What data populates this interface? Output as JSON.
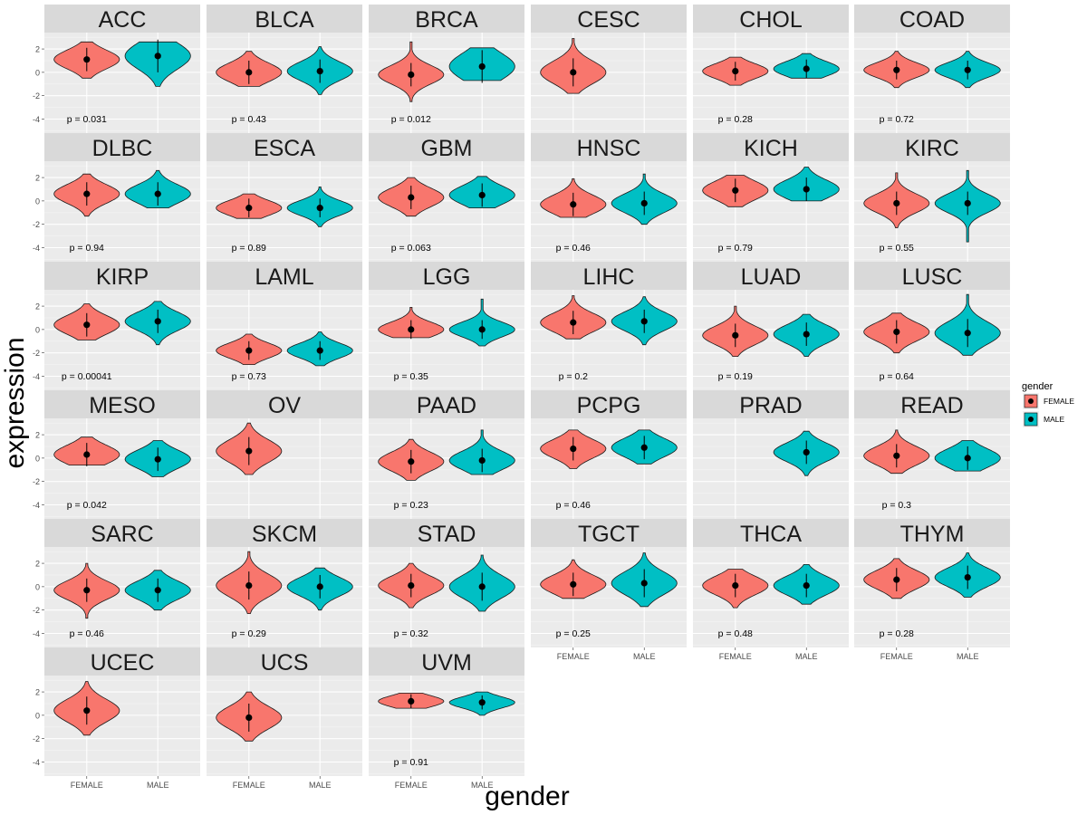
{
  "chart_data": {
    "type": "violin",
    "xlabel": "gender",
    "ylabel": "expression",
    "ylim": [
      -5.2,
      3.4
    ],
    "yticks": [
      "2",
      "0",
      "-2",
      "-4"
    ],
    "ytick_values": [
      2,
      0,
      -2,
      -4
    ],
    "categories": [
      "FEMALE",
      "MALE"
    ],
    "legend": {
      "title": "gender",
      "position": "right",
      "entries": [
        {
          "label": "FEMALE",
          "color": "#F8766D"
        },
        {
          "label": "MALE",
          "color": "#00BFC4"
        }
      ]
    },
    "panels": [
      {
        "name": "ACC",
        "p": "p = 0.031",
        "female": {
          "min": -0.5,
          "max": 2.6,
          "mean": 1.1,
          "sd": 0.5
        },
        "male": {
          "min": -1.2,
          "max": 2.6,
          "mean": 1.4,
          "sd": 0.7
        }
      },
      {
        "name": "BLCA",
        "p": "p = 0.43",
        "female": {
          "min": -1.2,
          "max": 1.8,
          "mean": 0.0,
          "sd": 0.5
        },
        "male": {
          "min": -1.9,
          "max": 2.2,
          "mean": 0.1,
          "sd": 0.5
        }
      },
      {
        "name": "BRCA",
        "p": "p = 0.012",
        "female": {
          "min": -2.5,
          "max": 2.6,
          "mean": -0.2,
          "sd": 0.5
        },
        "male": {
          "min": -0.7,
          "max": 2.1,
          "mean": 0.5,
          "sd": 0.7
        }
      },
      {
        "name": "CESC",
        "p": "",
        "female": {
          "min": -1.8,
          "max": 2.9,
          "mean": 0.0,
          "sd": 0.6
        },
        "male": null
      },
      {
        "name": "CHOL",
        "p": "p = 0.28",
        "female": {
          "min": -1.1,
          "max": 1.3,
          "mean": 0.1,
          "sd": 0.4
        },
        "male": {
          "min": -0.5,
          "max": 1.6,
          "mean": 0.3,
          "sd": 0.4
        }
      },
      {
        "name": "COAD",
        "p": "p = 0.72",
        "female": {
          "min": -1.3,
          "max": 1.8,
          "mean": 0.2,
          "sd": 0.4
        },
        "male": {
          "min": -1.3,
          "max": 1.8,
          "mean": 0.2,
          "sd": 0.4
        }
      },
      {
        "name": "DLBC",
        "p": "p = 0.94",
        "female": {
          "min": -1.3,
          "max": 2.3,
          "mean": 0.6,
          "sd": 0.5
        },
        "male": {
          "min": -0.6,
          "max": 2.6,
          "mean": 0.6,
          "sd": 0.5
        }
      },
      {
        "name": "ESCA",
        "p": "p = 0.89",
        "female": {
          "min": -1.5,
          "max": 0.6,
          "mean": -0.6,
          "sd": 0.4
        },
        "male": {
          "min": -2.2,
          "max": 1.2,
          "mean": -0.6,
          "sd": 0.4
        }
      },
      {
        "name": "GBM",
        "p": "p = 0.063",
        "female": {
          "min": -1.3,
          "max": 2.0,
          "mean": 0.3,
          "sd": 0.5
        },
        "male": {
          "min": -0.6,
          "max": 2.1,
          "mean": 0.5,
          "sd": 0.5
        }
      },
      {
        "name": "HNSC",
        "p": "p = 0.46",
        "female": {
          "min": -1.4,
          "max": 1.9,
          "mean": -0.3,
          "sd": 0.5
        },
        "male": {
          "min": -2.0,
          "max": 2.3,
          "mean": -0.2,
          "sd": 0.5
        }
      },
      {
        "name": "KICH",
        "p": "p = 0.79",
        "female": {
          "min": -0.5,
          "max": 2.2,
          "mean": 0.9,
          "sd": 0.5
        },
        "male": {
          "min": 0.0,
          "max": 2.9,
          "mean": 1.0,
          "sd": 0.5
        }
      },
      {
        "name": "KIRC",
        "p": "p = 0.55",
        "female": {
          "min": -2.3,
          "max": 2.4,
          "mean": -0.2,
          "sd": 0.5
        },
        "male": {
          "min": -3.5,
          "max": 2.6,
          "mean": -0.2,
          "sd": 0.5
        }
      },
      {
        "name": "KIRP",
        "p": "p = 0.00041",
        "female": {
          "min": -0.9,
          "max": 2.2,
          "mean": 0.4,
          "sd": 0.5
        },
        "male": {
          "min": -1.3,
          "max": 2.4,
          "mean": 0.7,
          "sd": 0.5
        }
      },
      {
        "name": "LAML",
        "p": "p = 0.73",
        "female": {
          "min": -3.0,
          "max": -0.4,
          "mean": -1.8,
          "sd": 0.4
        },
        "male": {
          "min": -3.1,
          "max": -0.2,
          "mean": -1.8,
          "sd": 0.4
        }
      },
      {
        "name": "LGG",
        "p": "p = 0.35",
        "female": {
          "min": -0.7,
          "max": 1.9,
          "mean": 0.0,
          "sd": 0.4
        },
        "male": {
          "min": -1.4,
          "max": 2.6,
          "mean": 0.0,
          "sd": 0.4
        }
      },
      {
        "name": "LIHC",
        "p": "p = 0.2",
        "female": {
          "min": -0.8,
          "max": 2.9,
          "mean": 0.6,
          "sd": 0.5
        },
        "male": {
          "min": -1.3,
          "max": 2.8,
          "mean": 0.7,
          "sd": 0.5
        }
      },
      {
        "name": "LUAD",
        "p": "p = 0.19",
        "female": {
          "min": -2.3,
          "max": 2.0,
          "mean": -0.5,
          "sd": 0.5
        },
        "male": {
          "min": -2.3,
          "max": 1.3,
          "mean": -0.4,
          "sd": 0.5
        }
      },
      {
        "name": "LUSC",
        "p": "p = 0.64",
        "female": {
          "min": -2.0,
          "max": 1.4,
          "mean": -0.2,
          "sd": 0.5
        },
        "male": {
          "min": -2.2,
          "max": 3.0,
          "mean": -0.3,
          "sd": 0.6
        }
      },
      {
        "name": "MESO",
        "p": "p = 0.042",
        "female": {
          "min": -0.6,
          "max": 1.8,
          "mean": 0.3,
          "sd": 0.5
        },
        "male": {
          "min": -1.6,
          "max": 1.5,
          "mean": -0.1,
          "sd": 0.5
        }
      },
      {
        "name": "OV",
        "p": "",
        "female": {
          "min": -1.4,
          "max": 3.0,
          "mean": 0.6,
          "sd": 0.6
        },
        "male": null
      },
      {
        "name": "PAAD",
        "p": "p = 0.23",
        "female": {
          "min": -1.9,
          "max": 1.6,
          "mean": -0.3,
          "sd": 0.5
        },
        "male": {
          "min": -1.4,
          "max": 2.4,
          "mean": -0.2,
          "sd": 0.5
        }
      },
      {
        "name": "PCPG",
        "p": "p = 0.46",
        "female": {
          "min": -0.9,
          "max": 2.4,
          "mean": 0.8,
          "sd": 0.5
        },
        "male": {
          "min": -0.5,
          "max": 2.4,
          "mean": 0.9,
          "sd": 0.5
        }
      },
      {
        "name": "PRAD",
        "p": "",
        "female": null,
        "male": {
          "min": -1.5,
          "max": 2.3,
          "mean": 0.5,
          "sd": 0.5
        }
      },
      {
        "name": "READ",
        "p": "p = 0.3",
        "female": {
          "min": -1.3,
          "max": 2.4,
          "mean": 0.2,
          "sd": 0.5
        },
        "male": {
          "min": -1.1,
          "max": 1.5,
          "mean": 0.0,
          "sd": 0.5
        }
      },
      {
        "name": "SARC",
        "p": "p = 0.46",
        "female": {
          "min": -2.7,
          "max": 2.0,
          "mean": -0.3,
          "sd": 0.5
        },
        "male": {
          "min": -2.0,
          "max": 1.4,
          "mean": -0.3,
          "sd": 0.5
        }
      },
      {
        "name": "SKCM",
        "p": "p = 0.29",
        "female": {
          "min": -2.3,
          "max": 3.0,
          "mean": 0.1,
          "sd": 0.6
        },
        "male": {
          "min": -2.0,
          "max": 1.6,
          "mean": 0.0,
          "sd": 0.5
        }
      },
      {
        "name": "STAD",
        "p": "p = 0.32",
        "female": {
          "min": -1.8,
          "max": 2.0,
          "mean": 0.1,
          "sd": 0.5
        },
        "male": {
          "min": -2.1,
          "max": 2.7,
          "mean": 0.0,
          "sd": 0.6
        }
      },
      {
        "name": "TGCT",
        "p": "p = 0.25",
        "female": {
          "min": -1.0,
          "max": 2.3,
          "mean": 0.2,
          "sd": 0.5
        },
        "male": {
          "min": -1.7,
          "max": 2.9,
          "mean": 0.3,
          "sd": 0.6
        }
      },
      {
        "name": "THCA",
        "p": "p = 0.48",
        "female": {
          "min": -1.8,
          "max": 1.5,
          "mean": 0.1,
          "sd": 0.5
        },
        "male": {
          "min": -1.5,
          "max": 1.9,
          "mean": 0.1,
          "sd": 0.5
        }
      },
      {
        "name": "THYM",
        "p": "p = 0.28",
        "female": {
          "min": -1.0,
          "max": 2.4,
          "mean": 0.6,
          "sd": 0.5
        },
        "male": {
          "min": -0.9,
          "max": 2.9,
          "mean": 0.8,
          "sd": 0.5
        }
      },
      {
        "name": "UCEC",
        "p": "",
        "female": {
          "min": -1.7,
          "max": 2.9,
          "mean": 0.4,
          "sd": 0.6
        },
        "male": null
      },
      {
        "name": "UCS",
        "p": "",
        "female": {
          "min": -2.2,
          "max": 2.0,
          "mean": -0.2,
          "sd": 0.6
        },
        "male": null
      },
      {
        "name": "UVM",
        "p": "p = 0.91",
        "female": {
          "min": 0.6,
          "max": 1.9,
          "mean": 1.2,
          "sd": 0.3
        },
        "male": {
          "min": 0.0,
          "max": 2.0,
          "mean": 1.1,
          "sd": 0.3
        }
      }
    ]
  }
}
